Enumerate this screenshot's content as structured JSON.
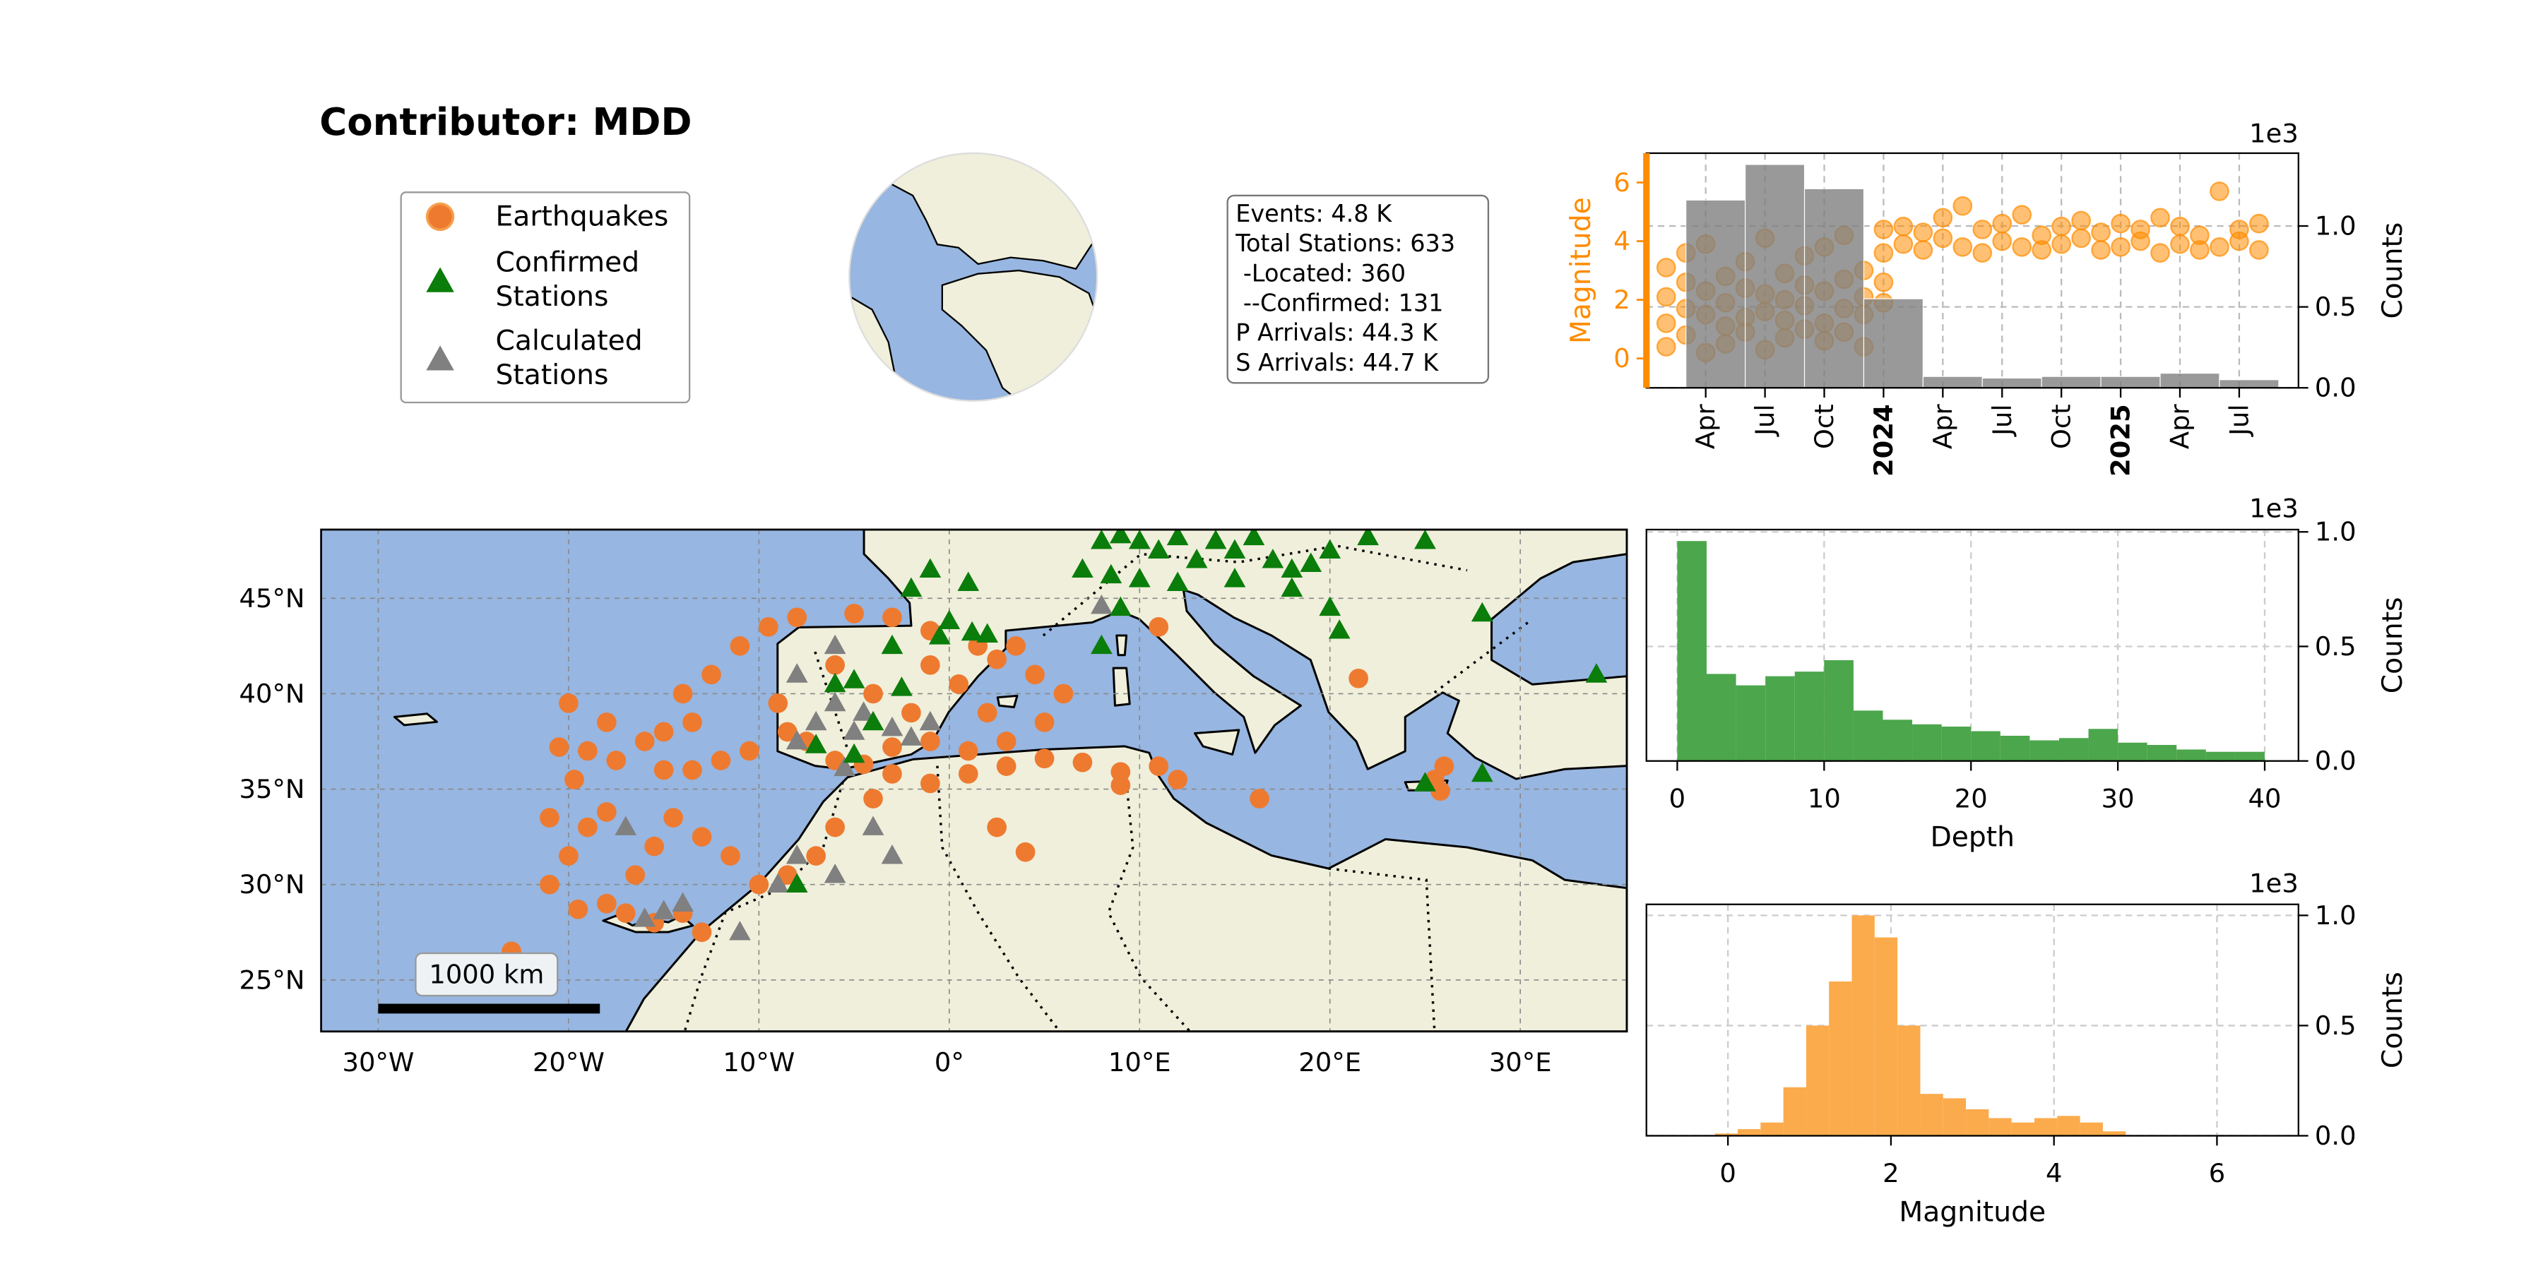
{
  "title": "Contributor: MDD",
  "stats": [
    "Events: 4.8 K",
    "Total Stations: 633",
    " -Located: 360",
    " --Confirmed: 131",
    "P Arrivals: 44.3 K",
    "S Arrivals: 44.7 K"
  ],
  "chart_data": [
    {
      "type": "map",
      "scale_bar": "1000 km",
      "grid": true,
      "xlim": [
        -33,
        35.6
      ],
      "ylim": [
        22.3,
        48.6
      ],
      "xticks": [
        {
          "value": -30,
          "label": "30°W"
        },
        {
          "value": -20,
          "label": "20°W"
        },
        {
          "value": -10,
          "label": "10°W"
        },
        {
          "value": 0,
          "label": "0°"
        },
        {
          "value": 10,
          "label": "10°E"
        },
        {
          "value": 20,
          "label": "20°E"
        },
        {
          "value": 30,
          "label": "30°E"
        }
      ],
      "yticks": [
        {
          "value": 25,
          "label": "25°N"
        },
        {
          "value": 30,
          "label": "30°N"
        },
        {
          "value": 35,
          "label": "35°N"
        },
        {
          "value": 40,
          "label": "40°N"
        },
        {
          "value": 45,
          "label": "45°N"
        }
      ],
      "series": [
        {
          "name": "Earthquakes",
          "marker": "circle",
          "color": "#ee7a30",
          "x": [
            -9,
            -10.5,
            -12,
            -13.5,
            -15,
            -16,
            -17.5,
            -19,
            -20.5,
            -18,
            -14,
            -20,
            -12.5,
            -11,
            -9.5,
            -8,
            -5,
            -3,
            -1,
            1.5,
            2.5,
            3.5,
            4.5,
            6,
            5,
            3,
            1,
            -1,
            -3,
            -4.5,
            -6,
            -7.5,
            -8.5,
            -2,
            -4,
            -6,
            -1,
            0.5,
            2,
            -3,
            -1,
            1,
            3,
            5,
            7,
            9,
            11,
            12,
            2.5,
            4,
            9,
            -4,
            -6,
            -7,
            -8.5,
            -10,
            -11.5,
            -13,
            -14.5,
            -15.5,
            -16.5,
            -17,
            -15.5,
            -14,
            -13,
            -18,
            -19.5,
            -21,
            -20,
            -19,
            -21,
            -19.7,
            -23,
            -13.5,
            16.3,
            21.5,
            11,
            25.5,
            26,
            25.8,
            -18,
            -15
          ],
          "values": [
            39.5,
            37,
            36.5,
            38.5,
            38,
            37.5,
            36.5,
            37,
            37.2,
            38.5,
            40,
            39.5,
            41,
            42.5,
            43.5,
            44,
            44.2,
            44,
            43.3,
            42.5,
            41.8,
            42.5,
            41,
            40,
            38.5,
            37.5,
            37,
            37.5,
            37.2,
            36.3,
            36.5,
            37.5,
            38,
            39,
            40,
            41.5,
            41.5,
            40.5,
            39,
            35.8,
            35.3,
            35.8,
            36.2,
            36.6,
            36.4,
            35.9,
            36.2,
            35.5,
            33,
            31.7,
            35.2,
            34.5,
            33,
            31.5,
            30.5,
            30,
            31.5,
            32.5,
            33.5,
            32,
            30.5,
            28.5,
            28,
            28.5,
            27.5,
            29,
            28.7,
            30,
            31.5,
            33,
            33.5,
            35.5,
            26.5,
            36,
            34.5,
            40.8,
            43.5,
            35.5,
            36.2,
            34.9,
            33.8,
            36
          ]
        },
        {
          "name": "Calculated Stations",
          "marker": "triangle",
          "color": "#808080",
          "x": [
            -14,
            -16,
            -15,
            -17,
            -9,
            -8,
            -6,
            -4,
            -8,
            -7,
            -5,
            -3,
            -6,
            -4.5,
            -2,
            -1,
            -8,
            -6,
            -11,
            8,
            -5.5,
            -3
          ],
          "values": [
            29,
            28.2,
            28.6,
            33,
            30,
            31.5,
            30.5,
            33,
            37.5,
            38.5,
            38,
            38.2,
            39.5,
            39,
            37.7,
            38.5,
            41,
            42.5,
            27.5,
            44.6,
            36.1,
            31.5
          ]
        },
        {
          "name": "Confirmed Stations",
          "marker": "triangle",
          "color": "#0a7d0a",
          "x": [
            8,
            9,
            10,
            11,
            12,
            13,
            14,
            15,
            16,
            17,
            18,
            19,
            20,
            22,
            25,
            7,
            8.5,
            10,
            12,
            15,
            18,
            20,
            1,
            -1,
            -2,
            0,
            1.2,
            2,
            -0.5,
            -3,
            -5,
            -6,
            -2.5,
            -4,
            -8,
            -5,
            -7,
            8,
            20.5,
            28,
            34,
            25,
            28,
            9
          ],
          "values": [
            48,
            48.3,
            48,
            47.5,
            48.2,
            47,
            48,
            47.5,
            48.2,
            47,
            46.5,
            46.8,
            47.5,
            48.2,
            48,
            46.5,
            46.2,
            46,
            45.8,
            46,
            45.5,
            44.5,
            45.8,
            46.5,
            45.5,
            43.8,
            43.2,
            43.1,
            43,
            42.5,
            40.7,
            40.5,
            40.3,
            38.5,
            30,
            36.8,
            37.3,
            42.5,
            43.3,
            44.2,
            41,
            35.3,
            35.8,
            44.5
          ]
        }
      ]
    },
    {
      "type": "timeline",
      "ylabel": "Magnitude",
      "y2label": "Counts",
      "y2_offset": "1e3",
      "grid": true,
      "xlim": [
        "2023-01",
        "2025-10"
      ],
      "xticks": [
        {
          "value": "2023-04",
          "label": "Apr"
        },
        {
          "value": "2023-07",
          "label": "Jul"
        },
        {
          "value": "2023-10",
          "label": "Oct"
        },
        {
          "value": "2024-01",
          "label": "2024",
          "bold": true
        },
        {
          "value": "2024-04",
          "label": "Apr"
        },
        {
          "value": "2024-07",
          "label": "Jul"
        },
        {
          "value": "2024-10",
          "label": "Oct"
        },
        {
          "value": "2025-01",
          "label": "2025",
          "bold": true
        },
        {
          "value": "2025-04",
          "label": "Apr"
        },
        {
          "value": "2025-07",
          "label": "Jul"
        }
      ],
      "ylim": [
        -1,
        7
      ],
      "yticks": [
        0,
        2,
        4,
        6
      ],
      "color": "#ff8c00",
      "y2lim": [
        0,
        1.45
      ],
      "y2ticks": [
        {
          "value": 0,
          "label": "0.0"
        },
        {
          "value": 0.5,
          "label": "0.5"
        },
        {
          "value": 1,
          "label": "1.0"
        }
      ],
      "scatter": {
        "color": "#ff8c00",
        "x": [
          "2023-02",
          "2023-02",
          "2023-02",
          "2023-02",
          "2023-03",
          "2023-03",
          "2023-03",
          "2023-03",
          "2023-04",
          "2023-04",
          "2023-04",
          "2023-04",
          "2023-05",
          "2023-05",
          "2023-05",
          "2023-05",
          "2023-06",
          "2023-06",
          "2023-06",
          "2023-06",
          "2023-07",
          "2023-07",
          "2023-07",
          "2023-07",
          "2023-08",
          "2023-08",
          "2023-08",
          "2023-08",
          "2023-09",
          "2023-09",
          "2023-09",
          "2023-09",
          "2023-10",
          "2023-10",
          "2023-10",
          "2023-10",
          "2023-11",
          "2023-11",
          "2023-11",
          "2023-11",
          "2023-12",
          "2023-12",
          "2023-12",
          "2023-12",
          "2024-01",
          "2024-01",
          "2024-01",
          "2024-01",
          "2024-02",
          "2024-02",
          "2024-03",
          "2024-03",
          "2024-04",
          "2024-04",
          "2024-05",
          "2024-05",
          "2024-06",
          "2024-06",
          "2024-07",
          "2024-07",
          "2024-08",
          "2024-08",
          "2024-09",
          "2024-09",
          "2024-10",
          "2024-10",
          "2024-11",
          "2024-11",
          "2024-12",
          "2024-12",
          "2025-01",
          "2025-01",
          "2025-02",
          "2025-02",
          "2025-03",
          "2025-03",
          "2025-04",
          "2025-04",
          "2025-05",
          "2025-05",
          "2025-06",
          "2025-06",
          "2025-07",
          "2025-07",
          "2025-08",
          "2025-08"
        ],
        "values": [
          1.2,
          2.1,
          0.4,
          3.1,
          0.8,
          1.7,
          2.6,
          3.6,
          1.5,
          0.2,
          2.3,
          3.9,
          1.1,
          1.9,
          2.8,
          0.5,
          1.4,
          2.4,
          0.9,
          3.3,
          1.6,
          0.3,
          2.2,
          4.1,
          1.3,
          2.0,
          2.9,
          0.7,
          1.8,
          1.0,
          2.5,
          3.5,
          1.2,
          2.3,
          0.6,
          3.8,
          1.7,
          0.9,
          2.7,
          4.2,
          1.5,
          2.1,
          0.4,
          3.0,
          1.9,
          3.6,
          4.4,
          2.6,
          3.9,
          4.5,
          3.7,
          4.3,
          4.1,
          4.8,
          3.8,
          5.2,
          3.6,
          4.4,
          4.0,
          4.6,
          3.8,
          4.9,
          4.2,
          3.7,
          3.9,
          4.5,
          4.1,
          4.7,
          3.7,
          4.3,
          3.8,
          4.6,
          4.0,
          4.4,
          3.6,
          4.8,
          3.9,
          4.5,
          4.2,
          3.7,
          3.8,
          5.7,
          4.0,
          4.4,
          3.7,
          4.6
        ]
      },
      "histogram": {
        "axis": "y2",
        "color": "#808080",
        "bins": [
          "2023-03",
          "2023-06",
          "2023-09",
          "2023-12",
          "2024-03",
          "2024-06",
          "2024-09",
          "2024-12",
          "2025-03",
          "2025-06",
          "2025-09"
        ],
        "values": [
          1.16,
          1.38,
          1.23,
          0.55,
          0.07,
          0.06,
          0.07,
          0.07,
          0.09,
          0.05
        ]
      }
    },
    {
      "type": "histogram",
      "xlabel": "Depth",
      "ylabel": "Counts",
      "offset_text": "1e3",
      "grid": true,
      "color": "#4ca64c",
      "xlim": [
        -2.1,
        42.3
      ],
      "xticks": [
        0,
        10,
        20,
        30,
        40
      ],
      "ylim": [
        0,
        1.01
      ],
      "yticks": [
        {
          "value": 0,
          "label": "0.0"
        },
        {
          "value": 0.5,
          "label": "0.5"
        },
        {
          "value": 1,
          "label": "1.0"
        }
      ],
      "bins": [
        0,
        2,
        4,
        6,
        8,
        10,
        12,
        14,
        16,
        18,
        20,
        22,
        24,
        26,
        28,
        30,
        32,
        34,
        36,
        38,
        40
      ],
      "values": [
        0.96,
        0.38,
        0.33,
        0.37,
        0.39,
        0.44,
        0.22,
        0.18,
        0.16,
        0.15,
        0.13,
        0.11,
        0.09,
        0.1,
        0.14,
        0.08,
        0.07,
        0.05,
        0.04,
        0.04
      ]
    },
    {
      "type": "histogram",
      "xlabel": "Magnitude",
      "ylabel": "Counts",
      "offset_text": "1e3",
      "grid": true,
      "color": "#fbab4b",
      "xlim": [
        -1,
        7
      ],
      "xticks": [
        0,
        2,
        4,
        6
      ],
      "ylim": [
        0,
        1.05
      ],
      "yticks": [
        {
          "value": 0,
          "label": "0.0"
        },
        {
          "value": 0.5,
          "label": "0.5"
        },
        {
          "value": 1,
          "label": "1.0"
        }
      ],
      "bins": [
        -0.16,
        0.12,
        0.4,
        0.68,
        0.96,
        1.24,
        1.52,
        1.8,
        2.08,
        2.36,
        2.64,
        2.92,
        3.2,
        3.48,
        3.76,
        4.04,
        4.32,
        4.6,
        4.88
      ],
      "values": [
        0.01,
        0.03,
        0.06,
        0.22,
        0.5,
        0.7,
        1.0,
        0.9,
        0.5,
        0.19,
        0.17,
        0.12,
        0.08,
        0.06,
        0.08,
        0.09,
        0.06,
        0.02
      ]
    }
  ]
}
